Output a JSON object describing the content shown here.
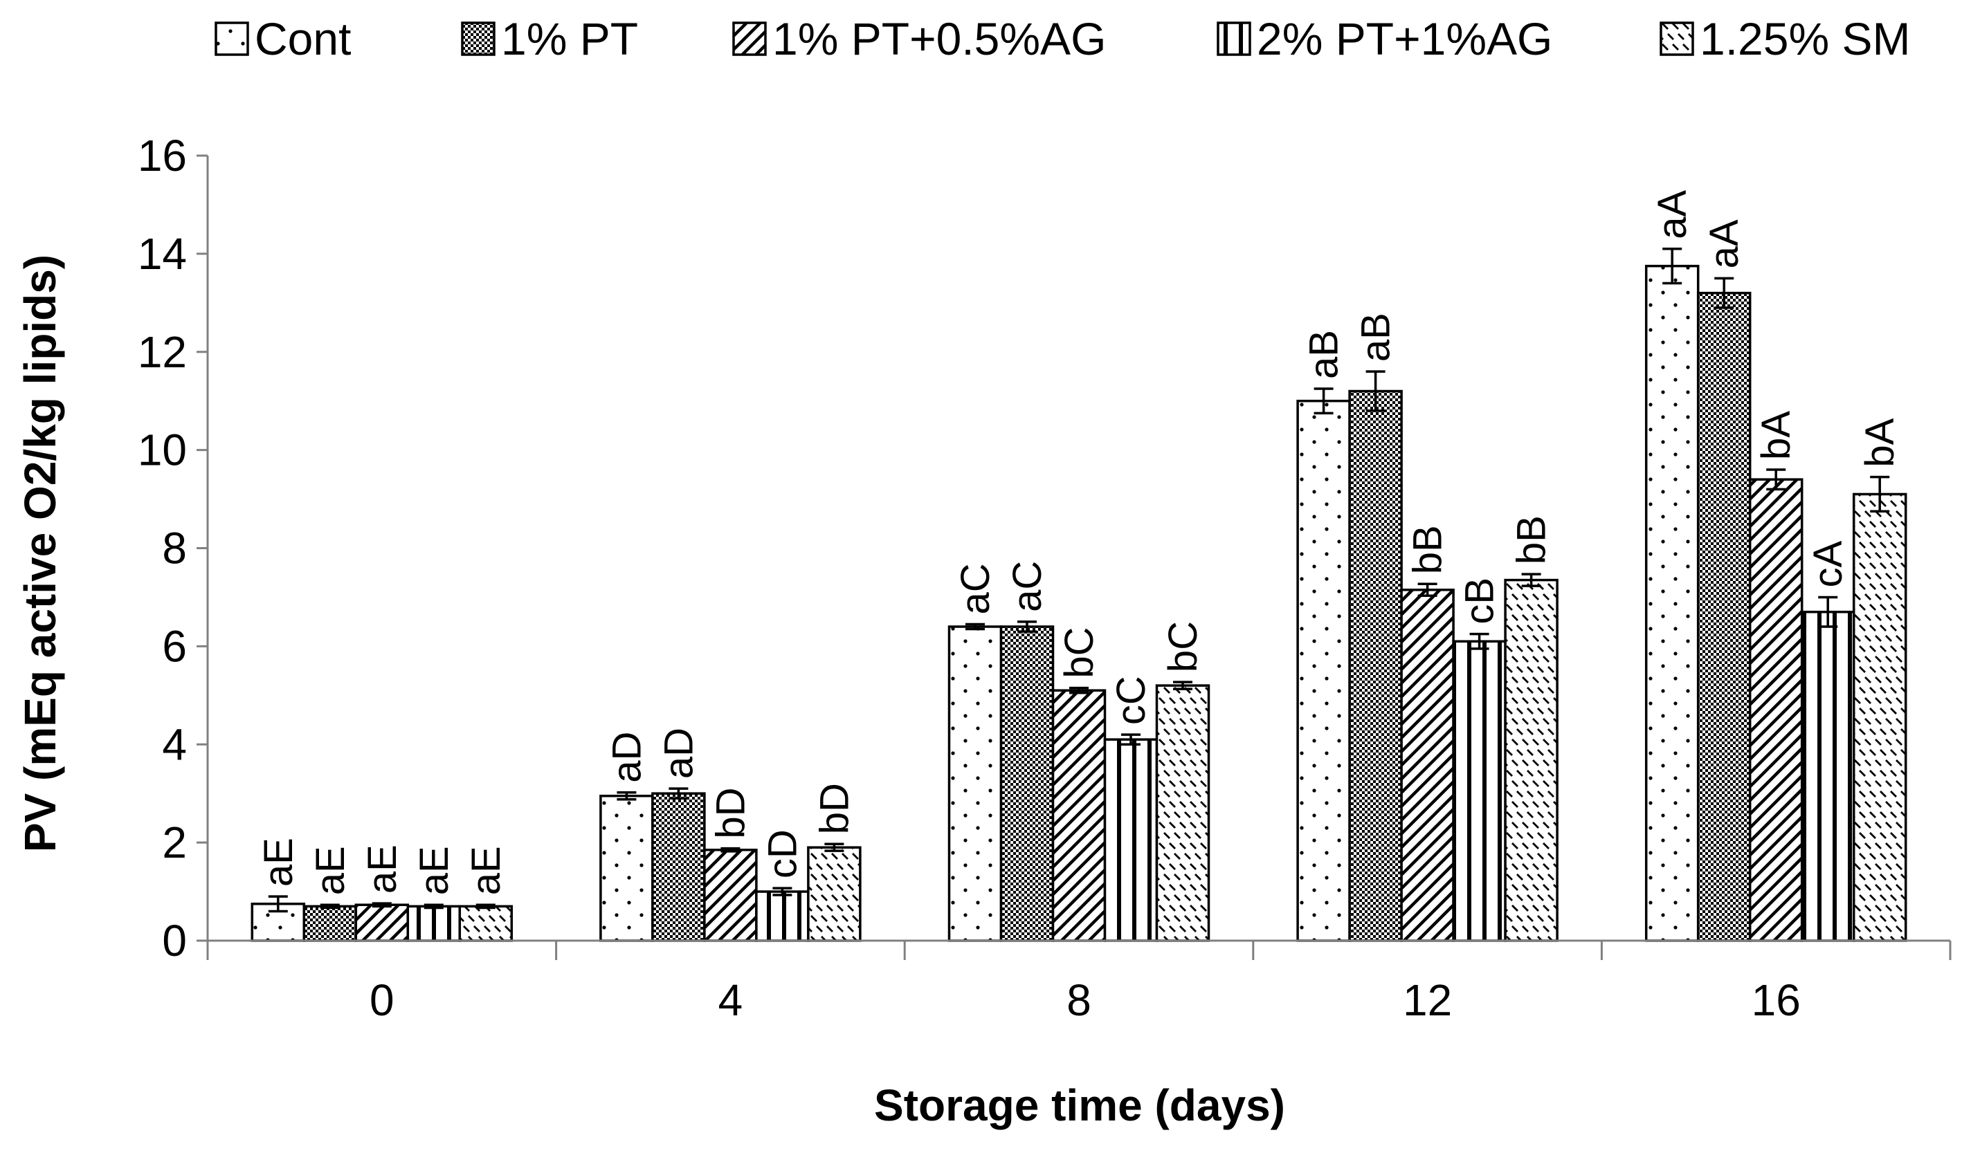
{
  "chart_data": {
    "type": "bar",
    "title": "",
    "xlabel": "Storage time (days)",
    "ylabel": "PV (mEq active O2/kg lipids)",
    "ylim": [
      0,
      16
    ],
    "yticks": [
      "0",
      "2",
      "4",
      "6",
      "8",
      "10",
      "12",
      "14",
      "16"
    ],
    "grid": false,
    "legend_position": "top",
    "categories": [
      "0",
      "4",
      "8",
      "12",
      "16"
    ],
    "series": [
      {
        "name": "Cont",
        "pattern": "dots",
        "values": [
          0.75,
          2.95,
          6.4,
          11.0,
          13.75
        ],
        "errors": [
          0.15,
          0.07,
          0.05,
          0.25,
          0.35
        ],
        "labels": [
          "aE",
          "aD",
          "aC",
          "aB",
          "aA"
        ]
      },
      {
        "name": "1% PT",
        "pattern": "checker",
        "values": [
          0.7,
          3.0,
          6.4,
          11.2,
          13.2
        ],
        "errors": [
          0.03,
          0.1,
          0.1,
          0.4,
          0.3
        ],
        "labels": [
          "aE",
          "aD",
          "aC",
          "aB",
          "aA"
        ]
      },
      {
        "name": "1% PT+0.5%AG",
        "pattern": "diagonal",
        "values": [
          0.73,
          1.85,
          5.1,
          7.15,
          9.4
        ],
        "errors": [
          0.03,
          0.03,
          0.05,
          0.12,
          0.2
        ],
        "labels": [
          "aE",
          "bD",
          "bC",
          "bB",
          "bA"
        ]
      },
      {
        "name": "2% PT+1%AG",
        "pattern": "vertical",
        "values": [
          0.7,
          1.0,
          4.1,
          6.1,
          6.7
        ],
        "errors": [
          0.03,
          0.07,
          0.1,
          0.15,
          0.3
        ],
        "labels": [
          "aE",
          "cD",
          "cC",
          "cB",
          "cA"
        ]
      },
      {
        "name": "1.25% SM",
        "pattern": "zigzag",
        "values": [
          0.7,
          1.9,
          5.2,
          7.35,
          9.1
        ],
        "errors": [
          0.03,
          0.07,
          0.07,
          0.12,
          0.35
        ],
        "labels": [
          "aE",
          "bD",
          "bC",
          "bB",
          "bA"
        ]
      }
    ]
  }
}
